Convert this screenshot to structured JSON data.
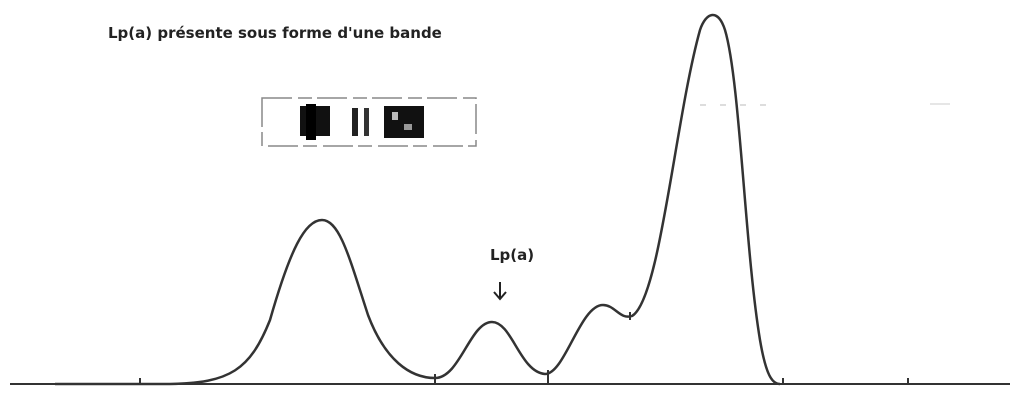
{
  "header": {
    "title": "Lp(a) présente sous forme d'une bande"
  },
  "annotation": {
    "label": "Lp(a)"
  }
}
